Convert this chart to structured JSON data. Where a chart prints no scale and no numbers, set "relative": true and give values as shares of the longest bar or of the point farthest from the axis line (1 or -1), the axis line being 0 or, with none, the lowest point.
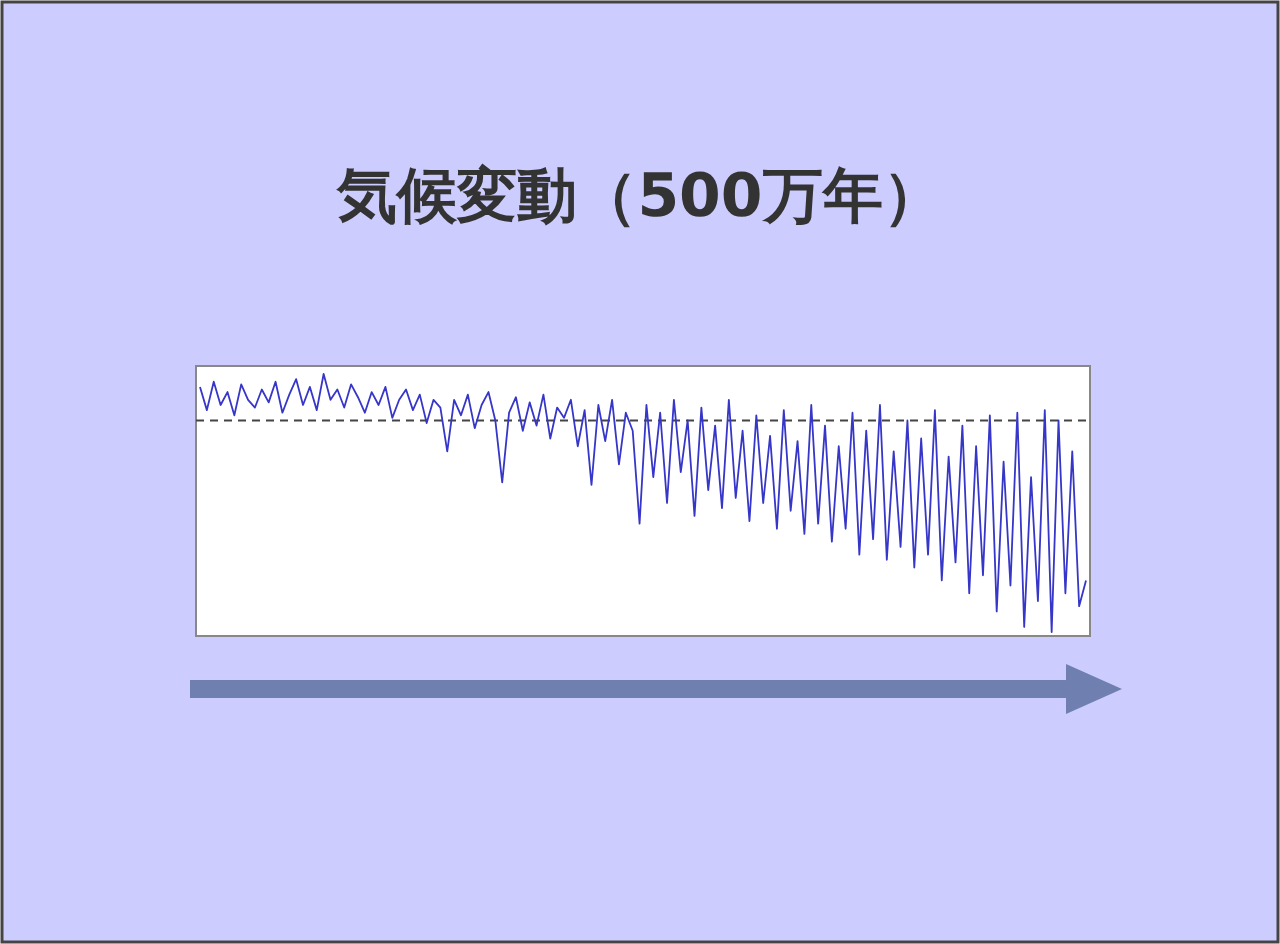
{
  "chart_data": {
    "type": "line",
    "title": "気候変動（500万年）",
    "relative": true,
    "categories": [
      null,
      null,
      null,
      null,
      null,
      null,
      null,
      null,
      null,
      null,
      null,
      null,
      null,
      null,
      null,
      null,
      null,
      null,
      null,
      null,
      null,
      null,
      null,
      null,
      null,
      null,
      null,
      null,
      null,
      null,
      null,
      null,
      null,
      null,
      null,
      null,
      null,
      null,
      null,
      null,
      null,
      null,
      null,
      null,
      null,
      null,
      null,
      null,
      null,
      null,
      null,
      null,
      null,
      null,
      null,
      null,
      null,
      null,
      null,
      null,
      null,
      null,
      null,
      null,
      null,
      null,
      null,
      null,
      null,
      null,
      null,
      null,
      null,
      null,
      null,
      null,
      null,
      null,
      null,
      null,
      null,
      null,
      null,
      null,
      null,
      null,
      null,
      null,
      null,
      null,
      null,
      null,
      null,
      null,
      null,
      null,
      null,
      null,
      null,
      null,
      null,
      null,
      null,
      null,
      null,
      null,
      null,
      null,
      null,
      null,
      null,
      null,
      null,
      null,
      null,
      null,
      null,
      null,
      null,
      null,
      null,
      null,
      null,
      null,
      null,
      null,
      null,
      null,
      null,
      null
    ],
    "series": [
      {
        "color": "#3636c8",
        "values": [
          0.95,
          0.86,
          0.97,
          0.88,
          0.93,
          0.84,
          0.96,
          0.9,
          0.87,
          0.94,
          0.89,
          0.97,
          0.85,
          0.92,
          0.98,
          0.88,
          0.95,
          0.86,
          1.0,
          0.9,
          0.94,
          0.87,
          0.96,
          0.91,
          0.85,
          0.93,
          0.88,
          0.95,
          0.83,
          0.9,
          0.94,
          0.86,
          0.92,
          0.81,
          0.9,
          0.87,
          0.7,
          0.9,
          0.84,
          0.92,
          0.79,
          0.88,
          0.93,
          0.82,
          0.58,
          0.85,
          0.91,
          0.78,
          0.89,
          0.8,
          0.92,
          0.75,
          0.87,
          0.83,
          0.9,
          0.72,
          0.86,
          0.57,
          0.88,
          0.74,
          0.9,
          0.65,
          0.85,
          0.78,
          0.42,
          0.88,
          0.6,
          0.85,
          0.5,
          0.9,
          0.62,
          0.82,
          0.45,
          0.87,
          0.55,
          0.8,
          0.48,
          0.9,
          0.52,
          0.78,
          0.43,
          0.84,
          0.5,
          0.76,
          0.4,
          0.86,
          0.47,
          0.74,
          0.38,
          0.88,
          0.42,
          0.8,
          0.35,
          0.72,
          0.4,
          0.85,
          0.3,
          0.78,
          0.36,
          0.88,
          0.28,
          0.7,
          0.33,
          0.82,
          0.25,
          0.75,
          0.3,
          0.86,
          0.2,
          0.68,
          0.27,
          0.8,
          0.15,
          0.72,
          0.22,
          0.84,
          0.08,
          0.66,
          0.18,
          0.85,
          0.02,
          0.6,
          0.12,
          0.86,
          0.0,
          0.82,
          0.15,
          0.7,
          0.1,
          0.2
        ]
      }
    ],
    "ref_lines": [
      {
        "axis": "y",
        "value": 0.82,
        "color": "#444444",
        "line_style": "dashed"
      }
    ]
  }
}
